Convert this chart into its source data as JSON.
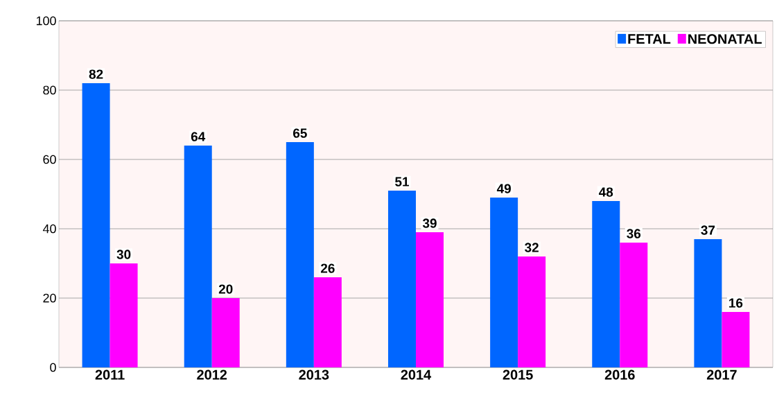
{
  "chart_data": {
    "type": "bar",
    "categories": [
      "2011",
      "2012",
      "2013",
      "2014",
      "2015",
      "2016",
      "2017"
    ],
    "series": [
      {
        "name": "FETAL",
        "color": "#0066ff",
        "values": [
          82,
          64,
          65,
          51,
          49,
          48,
          37
        ]
      },
      {
        "name": "NEONATAL",
        "color": "#ff00ff",
        "values": [
          30,
          20,
          26,
          39,
          32,
          36,
          16
        ]
      }
    ],
    "ylim": [
      0,
      100
    ],
    "yticks": [
      0,
      20,
      40,
      60,
      80,
      100
    ],
    "grid": "y",
    "legend": "top right",
    "data_labels": true
  }
}
